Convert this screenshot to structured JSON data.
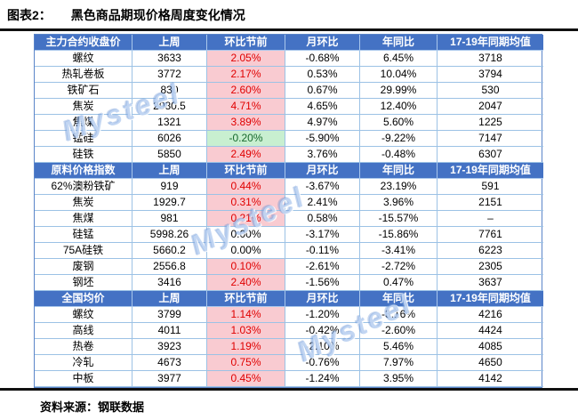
{
  "figure": {
    "label": "图表2：",
    "title": "黑色商品期现价格周度变化情况"
  },
  "watermark": "Mysteel",
  "source": {
    "label": "资料来源：",
    "text": "钢联数据"
  },
  "colors": {
    "header_bg": "#4472c4",
    "header_text": "#ffffff",
    "grid_border": "#9cc2e5",
    "positive_bg": "#f9cbd1",
    "positive_text": "#e00000",
    "negative_bg": "#c8efd0",
    "negative_text": "#17692d",
    "rule": "#111111"
  },
  "table": {
    "columns": [
      "上周",
      "环比节前",
      "月环比",
      "年同比",
      "17-19年同期均值"
    ],
    "sections": [
      {
        "header": "主力合约收盘价",
        "rows": [
          {
            "name": "螺纹",
            "last_week": "3633",
            "wow": "2.05%",
            "mom": "-0.68%",
            "yoy": "6.45%",
            "avg17_19": "3718",
            "wow_color": "up"
          },
          {
            "name": "热轧卷板",
            "last_week": "3772",
            "wow": "2.17%",
            "mom": "0.53%",
            "yoy": "10.04%",
            "avg17_19": "3794",
            "wow_color": "up"
          },
          {
            "name": "铁矿石",
            "last_week": "830",
            "wow": "2.60%",
            "mom": "0.67%",
            "yoy": "29.99%",
            "avg17_19": "530",
            "wow_color": "up"
          },
          {
            "name": "焦炭",
            "last_week": "2080.5",
            "wow": "4.71%",
            "mom": "4.65%",
            "yoy": "12.40%",
            "avg17_19": "2047",
            "wow_color": "up"
          },
          {
            "name": "焦煤",
            "last_week": "1321",
            "wow": "3.89%",
            "mom": "4.97%",
            "yoy": "5.60%",
            "avg17_19": "1225",
            "wow_color": "up"
          },
          {
            "name": "锰硅",
            "last_week": "6026",
            "wow": "-0.20%",
            "mom": "-5.90%",
            "yoy": "-9.22%",
            "avg17_19": "7147",
            "wow_color": "down"
          },
          {
            "name": "硅铁",
            "last_week": "5850",
            "wow": "2.49%",
            "mom": "3.76%",
            "yoy": "-0.48%",
            "avg17_19": "6307",
            "wow_color": "up"
          }
        ]
      },
      {
        "header": "原料价格指数",
        "rows": [
          {
            "name": "62%澳粉铁矿",
            "last_week": "919",
            "wow": "0.44%",
            "mom": "-3.67%",
            "yoy": "23.19%",
            "avg17_19": "591",
            "wow_color": "up"
          },
          {
            "name": "焦炭",
            "last_week": "1929.7",
            "wow": "0.31%",
            "mom": "2.41%",
            "yoy": "3.96%",
            "avg17_19": "2151",
            "wow_color": "up"
          },
          {
            "name": "焦煤",
            "last_week": "981",
            "wow": "0.21%",
            "mom": "0.58%",
            "yoy": "-15.57%",
            "avg17_19": "–",
            "wow_color": "up"
          },
          {
            "name": "硅锰",
            "last_week": "5998.26",
            "wow": "0.00%",
            "mom": "-3.17%",
            "yoy": "-15.86%",
            "avg17_19": "7761",
            "wow_color": "flat"
          },
          {
            "name": "75A硅铁",
            "last_week": "5660.2",
            "wow": "0.00%",
            "mom": "-0.11%",
            "yoy": "-3.41%",
            "avg17_19": "6223",
            "wow_color": "flat"
          },
          {
            "name": "废钢",
            "last_week": "2556.8",
            "wow": "0.10%",
            "mom": "-2.61%",
            "yoy": "-2.72%",
            "avg17_19": "2305",
            "wow_color": "up"
          },
          {
            "name": "钢坯",
            "last_week": "3416",
            "wow": "2.40%",
            "mom": "-1.56%",
            "yoy": "0.47%",
            "avg17_19": "3637",
            "wow_color": "up"
          }
        ]
      },
      {
        "header": "全国均价",
        "rows": [
          {
            "name": "螺纹",
            "last_week": "3799",
            "wow": "1.14%",
            "mom": "-1.20%",
            "yoy": "-3.16%",
            "avg17_19": "4216",
            "wow_color": "up"
          },
          {
            "name": "高线",
            "last_week": "4011",
            "wow": "1.03%",
            "mom": "-0.42%",
            "yoy": "-2.60%",
            "avg17_19": "4424",
            "wow_color": "up"
          },
          {
            "name": "热卷",
            "last_week": "3923",
            "wow": "1.19%",
            "mom": "-2.10%",
            "yoy": "5.46%",
            "avg17_19": "4085",
            "wow_color": "up"
          },
          {
            "name": "冷轧",
            "last_week": "4673",
            "wow": "0.75%",
            "mom": "-0.76%",
            "yoy": "7.97%",
            "avg17_19": "4650",
            "wow_color": "up"
          },
          {
            "name": "中板",
            "last_week": "3977",
            "wow": "0.45%",
            "mom": "-1.24%",
            "yoy": "3.95%",
            "avg17_19": "4142",
            "wow_color": "up"
          }
        ]
      }
    ]
  }
}
